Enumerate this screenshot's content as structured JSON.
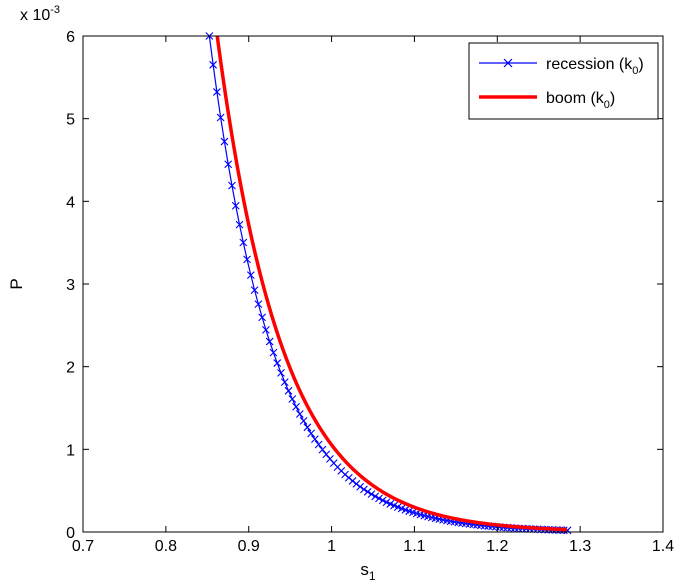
{
  "chart_data": {
    "type": "line",
    "title": "",
    "xlabel": "s",
    "xlabel_subscript": "1",
    "ylabel": "P",
    "y_exponent_label": "x 10",
    "y_exponent_power": "-3",
    "xlim": [
      0.7,
      1.4
    ],
    "ylim": [
      0,
      6
    ],
    "x_ticks": [
      0.7,
      0.8,
      0.9,
      1.0,
      1.1,
      1.2,
      1.3,
      1.4
    ],
    "x_tick_labels": [
      "0.7",
      "0.8",
      "0.9",
      "1",
      "1.1",
      "1.2",
      "1.3",
      "1.4"
    ],
    "y_ticks": [
      0,
      1,
      2,
      3,
      4,
      5,
      6
    ],
    "y_tick_labels": [
      "0",
      "1",
      "2",
      "3",
      "4",
      "5",
      "6"
    ],
    "grid": false,
    "legend_position": "top-right",
    "series": [
      {
        "name": "recession (k",
        "name_subscript": "0",
        "name_suffix": ")",
        "color": "#0000ff",
        "marker": "x",
        "x_start": 0.8525,
        "x_step": 0.00455,
        "x_end": 1.285,
        "x_peak_ref": 0.8525,
        "y_scale": 6.0,
        "y_decay": 13.15,
        "y_floor": 0.005
      },
      {
        "name": "boom (k",
        "name_subscript": "0",
        "name_suffix": ")",
        "color": "#ff0000",
        "marker": "none",
        "x_start": 0.862,
        "x_step": 0.002,
        "x_end": 1.285,
        "x_peak_ref": 0.862,
        "y_scale": 6.0,
        "y_decay": 12.6,
        "y_floor": 0.01
      }
    ]
  }
}
